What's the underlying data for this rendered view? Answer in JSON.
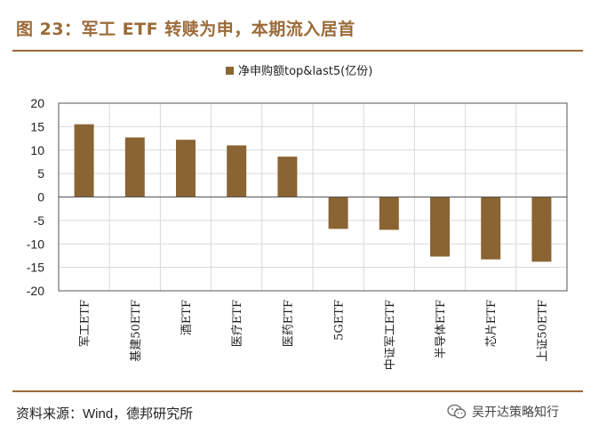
{
  "header": {
    "title": "图 23：军工 ETF 转赎为申，本期流入居首"
  },
  "footer": {
    "source": "资料来源：Wind，德邦研究所",
    "watermark": "吴开达策略知行",
    "watermark_icon": "wechat-icon"
  },
  "colors": {
    "bar": "#8b6434",
    "accent": "#9b6a38",
    "grid": "#d9d9d9"
  },
  "chart_data": {
    "type": "bar",
    "title": "",
    "legend": "净申购额top&last5(亿份)",
    "legend_position": "top-center",
    "categories": [
      "军工ETF",
      "基建50ETF",
      "酒ETF",
      "医疗ETF",
      "医药ETF",
      "5GETF",
      "中证军工ETF",
      "半导体ETF",
      "芯片ETF",
      "上证50ETF"
    ],
    "series": [
      {
        "name": "净申购额top&last5(亿份)",
        "values": [
          15.5,
          12.7,
          12.2,
          11.0,
          8.6,
          -6.8,
          -7.0,
          -12.7,
          -13.3,
          -13.8
        ]
      }
    ],
    "ylim": [
      -20,
      20
    ],
    "yticks": [
      20,
      15,
      10,
      5,
      0,
      -5,
      -10,
      -15,
      -20
    ],
    "grid": true,
    "xlabel": "",
    "ylabel": ""
  }
}
